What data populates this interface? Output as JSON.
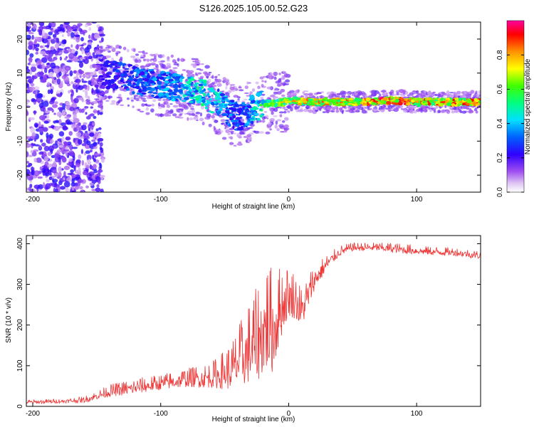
{
  "title": "S126.2025.105.00.52.G23",
  "chart_data": [
    {
      "type": "heatmap",
      "xlabel": "Height of straight line (km)",
      "ylabel": "Frequency (Hz)",
      "xlim": [
        -205,
        150
      ],
      "ylim": [
        -25,
        25
      ],
      "xticks": [
        -200,
        -100,
        0,
        100
      ],
      "xtick_labels": [
        "-200",
        "-100",
        "0",
        "100"
      ],
      "yticks": [
        -20,
        -10,
        0,
        10,
        20
      ],
      "ytick_labels": [
        "-20",
        "-10",
        "0",
        "10",
        "20"
      ],
      "colorbar": {
        "label": "Normalized spectral amplitude",
        "range": [
          0,
          1
        ],
        "ticks": [
          0.0,
          0.2,
          0.4,
          0.6,
          0.8
        ],
        "tick_labels": [
          "0.0",
          "0.2",
          "0.4",
          "0.6",
          "0.8"
        ]
      },
      "ridge": {
        "x": [
          -150,
          -130,
          -110,
          -90,
          -70,
          -55,
          -45,
          -38,
          -30,
          -20,
          -10,
          0,
          20,
          40,
          60,
          80,
          100,
          120,
          150
        ],
        "freq": [
          10,
          9,
          7,
          6,
          5,
          1,
          -2,
          -3,
          -1,
          1,
          1,
          2,
          1.5,
          1.5,
          1.5,
          2,
          1.5,
          1.5,
          1.5
        ],
        "amplitude": [
          0.2,
          0.3,
          0.35,
          0.4,
          0.5,
          0.45,
          0.35,
          0.3,
          0.4,
          0.6,
          0.7,
          0.75,
          0.8,
          0.85,
          0.85,
          0.9,
          0.85,
          0.85,
          0.85
        ]
      }
    },
    {
      "type": "line",
      "xlabel": "Height of straight line (km)",
      "ylabel": "SNR (10 * v/v)",
      "xlim": [
        -205,
        150
      ],
      "ylim": [
        0,
        420
      ],
      "xticks": [
        -200,
        -100,
        0,
        100
      ],
      "xtick_labels": [
        "-200",
        "-100",
        "0",
        "100"
      ],
      "yticks": [
        0,
        100,
        200,
        300,
        400
      ],
      "ytick_labels": [
        "0",
        "100",
        "200",
        "300",
        "400"
      ],
      "series": [
        {
          "name": "SNR",
          "color": "#ee3333",
          "x": [
            -205,
            -180,
            -160,
            -150,
            -140,
            -120,
            -100,
            -80,
            -60,
            -45,
            -35,
            -25,
            -18,
            -12,
            -8,
            -4,
            0,
            5,
            10,
            15,
            20,
            25,
            30,
            40,
            50,
            70,
            90,
            110,
            130,
            150
          ],
          "y": [
            10,
            12,
            15,
            25,
            35,
            45,
            55,
            65,
            70,
            85,
            120,
            150,
            190,
            180,
            220,
            250,
            270,
            260,
            230,
            270,
            310,
            330,
            350,
            380,
            390,
            390,
            385,
            380,
            378,
            370
          ],
          "noise": [
            4,
            4,
            6,
            8,
            12,
            15,
            15,
            18,
            25,
            45,
            70,
            90,
            110,
            100,
            80,
            60,
            50,
            45,
            40,
            35,
            25,
            20,
            15,
            10,
            8,
            8,
            10,
            8,
            8,
            8
          ]
        }
      ]
    }
  ]
}
